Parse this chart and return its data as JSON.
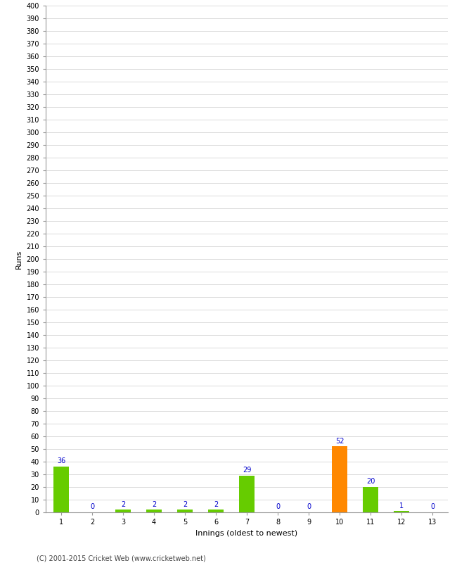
{
  "xlabel": "Innings (oldest to newest)",
  "ylabel": "Runs",
  "categories": [
    "1",
    "2",
    "3",
    "4",
    "5",
    "6",
    "7",
    "8",
    "9",
    "10",
    "11",
    "12",
    "13"
  ],
  "values": [
    36,
    0,
    2,
    2,
    2,
    2,
    29,
    0,
    0,
    52,
    20,
    1,
    0
  ],
  "bar_colors": [
    "#66cc00",
    "#66cc00",
    "#66cc00",
    "#66cc00",
    "#66cc00",
    "#66cc00",
    "#66cc00",
    "#66cc00",
    "#66cc00",
    "#ff8800",
    "#66cc00",
    "#66cc00",
    "#66cc00"
  ],
  "ylim": [
    0,
    400
  ],
  "ytick_step": 10,
  "label_color": "#0000cc",
  "label_fontsize": 7,
  "axis_tick_fontsize": 7,
  "xlabel_fontsize": 8,
  "ylabel_fontsize": 8,
  "footer": "(C) 2001-2015 Cricket Web (www.cricketweb.net)",
  "background_color": "#ffffff",
  "plot_bg_color": "#ffffff",
  "grid_color": "#cccccc",
  "spine_color": "#999999"
}
